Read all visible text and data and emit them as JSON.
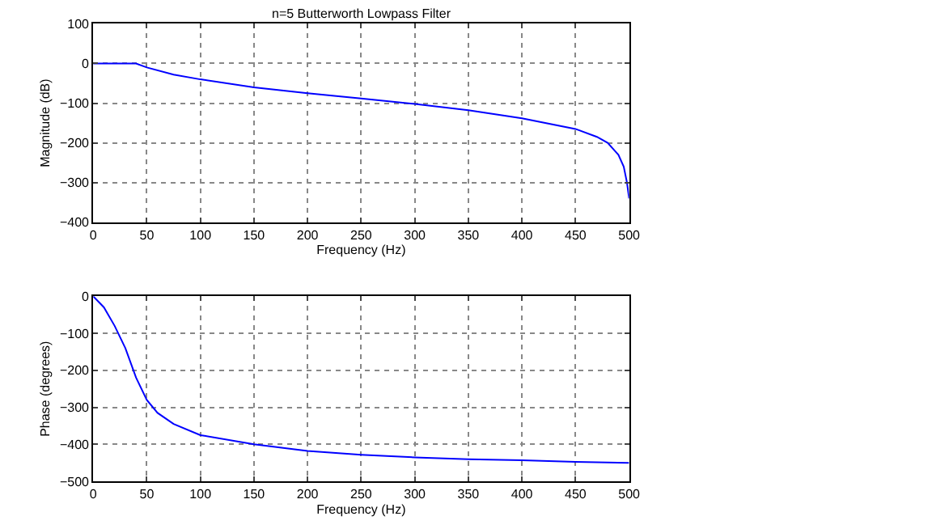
{
  "chart_data": [
    {
      "type": "line",
      "title": "n=5 Butterworth Lowpass Filter",
      "xlabel": "Frequency (Hz)",
      "ylabel": "Magnitude (dB)",
      "xlim": [
        0,
        500
      ],
      "xticks": [
        0,
        50,
        100,
        150,
        200,
        250,
        300,
        350,
        400,
        450,
        500
      ],
      "ylim": [
        -400,
        100
      ],
      "yticks": [
        -400,
        -300,
        -200,
        -100,
        0,
        100
      ],
      "grid": true,
      "marker": "none",
      "line_style": "solid",
      "series": [
        {
          "color": "#0000ff",
          "x": [
            0,
            20,
            40,
            50,
            75,
            100,
            150,
            200,
            250,
            300,
            350,
            400,
            450,
            470,
            480,
            490,
            495,
            498,
            500
          ],
          "values": [
            0,
            0,
            0,
            -10,
            -28,
            -40,
            -60,
            -75,
            -88,
            -102,
            -118,
            -138,
            -165,
            -185,
            -200,
            -230,
            -260,
            -300,
            -340
          ]
        }
      ]
    },
    {
      "type": "line",
      "xlabel": "Frequency (Hz)",
      "ylabel": "Phase (degrees)",
      "xlim": [
        0,
        500
      ],
      "xticks": [
        0,
        50,
        100,
        150,
        200,
        250,
        300,
        350,
        400,
        450,
        500
      ],
      "ylim": [
        -500,
        0
      ],
      "yticks": [
        -500,
        -400,
        -300,
        -200,
        -100,
        0
      ],
      "grid": true,
      "marker": "none",
      "line_style": "solid",
      "series": [
        {
          "color": "#0000ff",
          "x": [
            0,
            10,
            20,
            30,
            40,
            50,
            60,
            75,
            100,
            150,
            200,
            250,
            300,
            350,
            400,
            450,
            500
          ],
          "values": [
            0,
            -30,
            -80,
            -140,
            -220,
            -280,
            -315,
            -345,
            -375,
            -400,
            -418,
            -428,
            -435,
            -440,
            -443,
            -447,
            -450
          ]
        }
      ]
    }
  ]
}
